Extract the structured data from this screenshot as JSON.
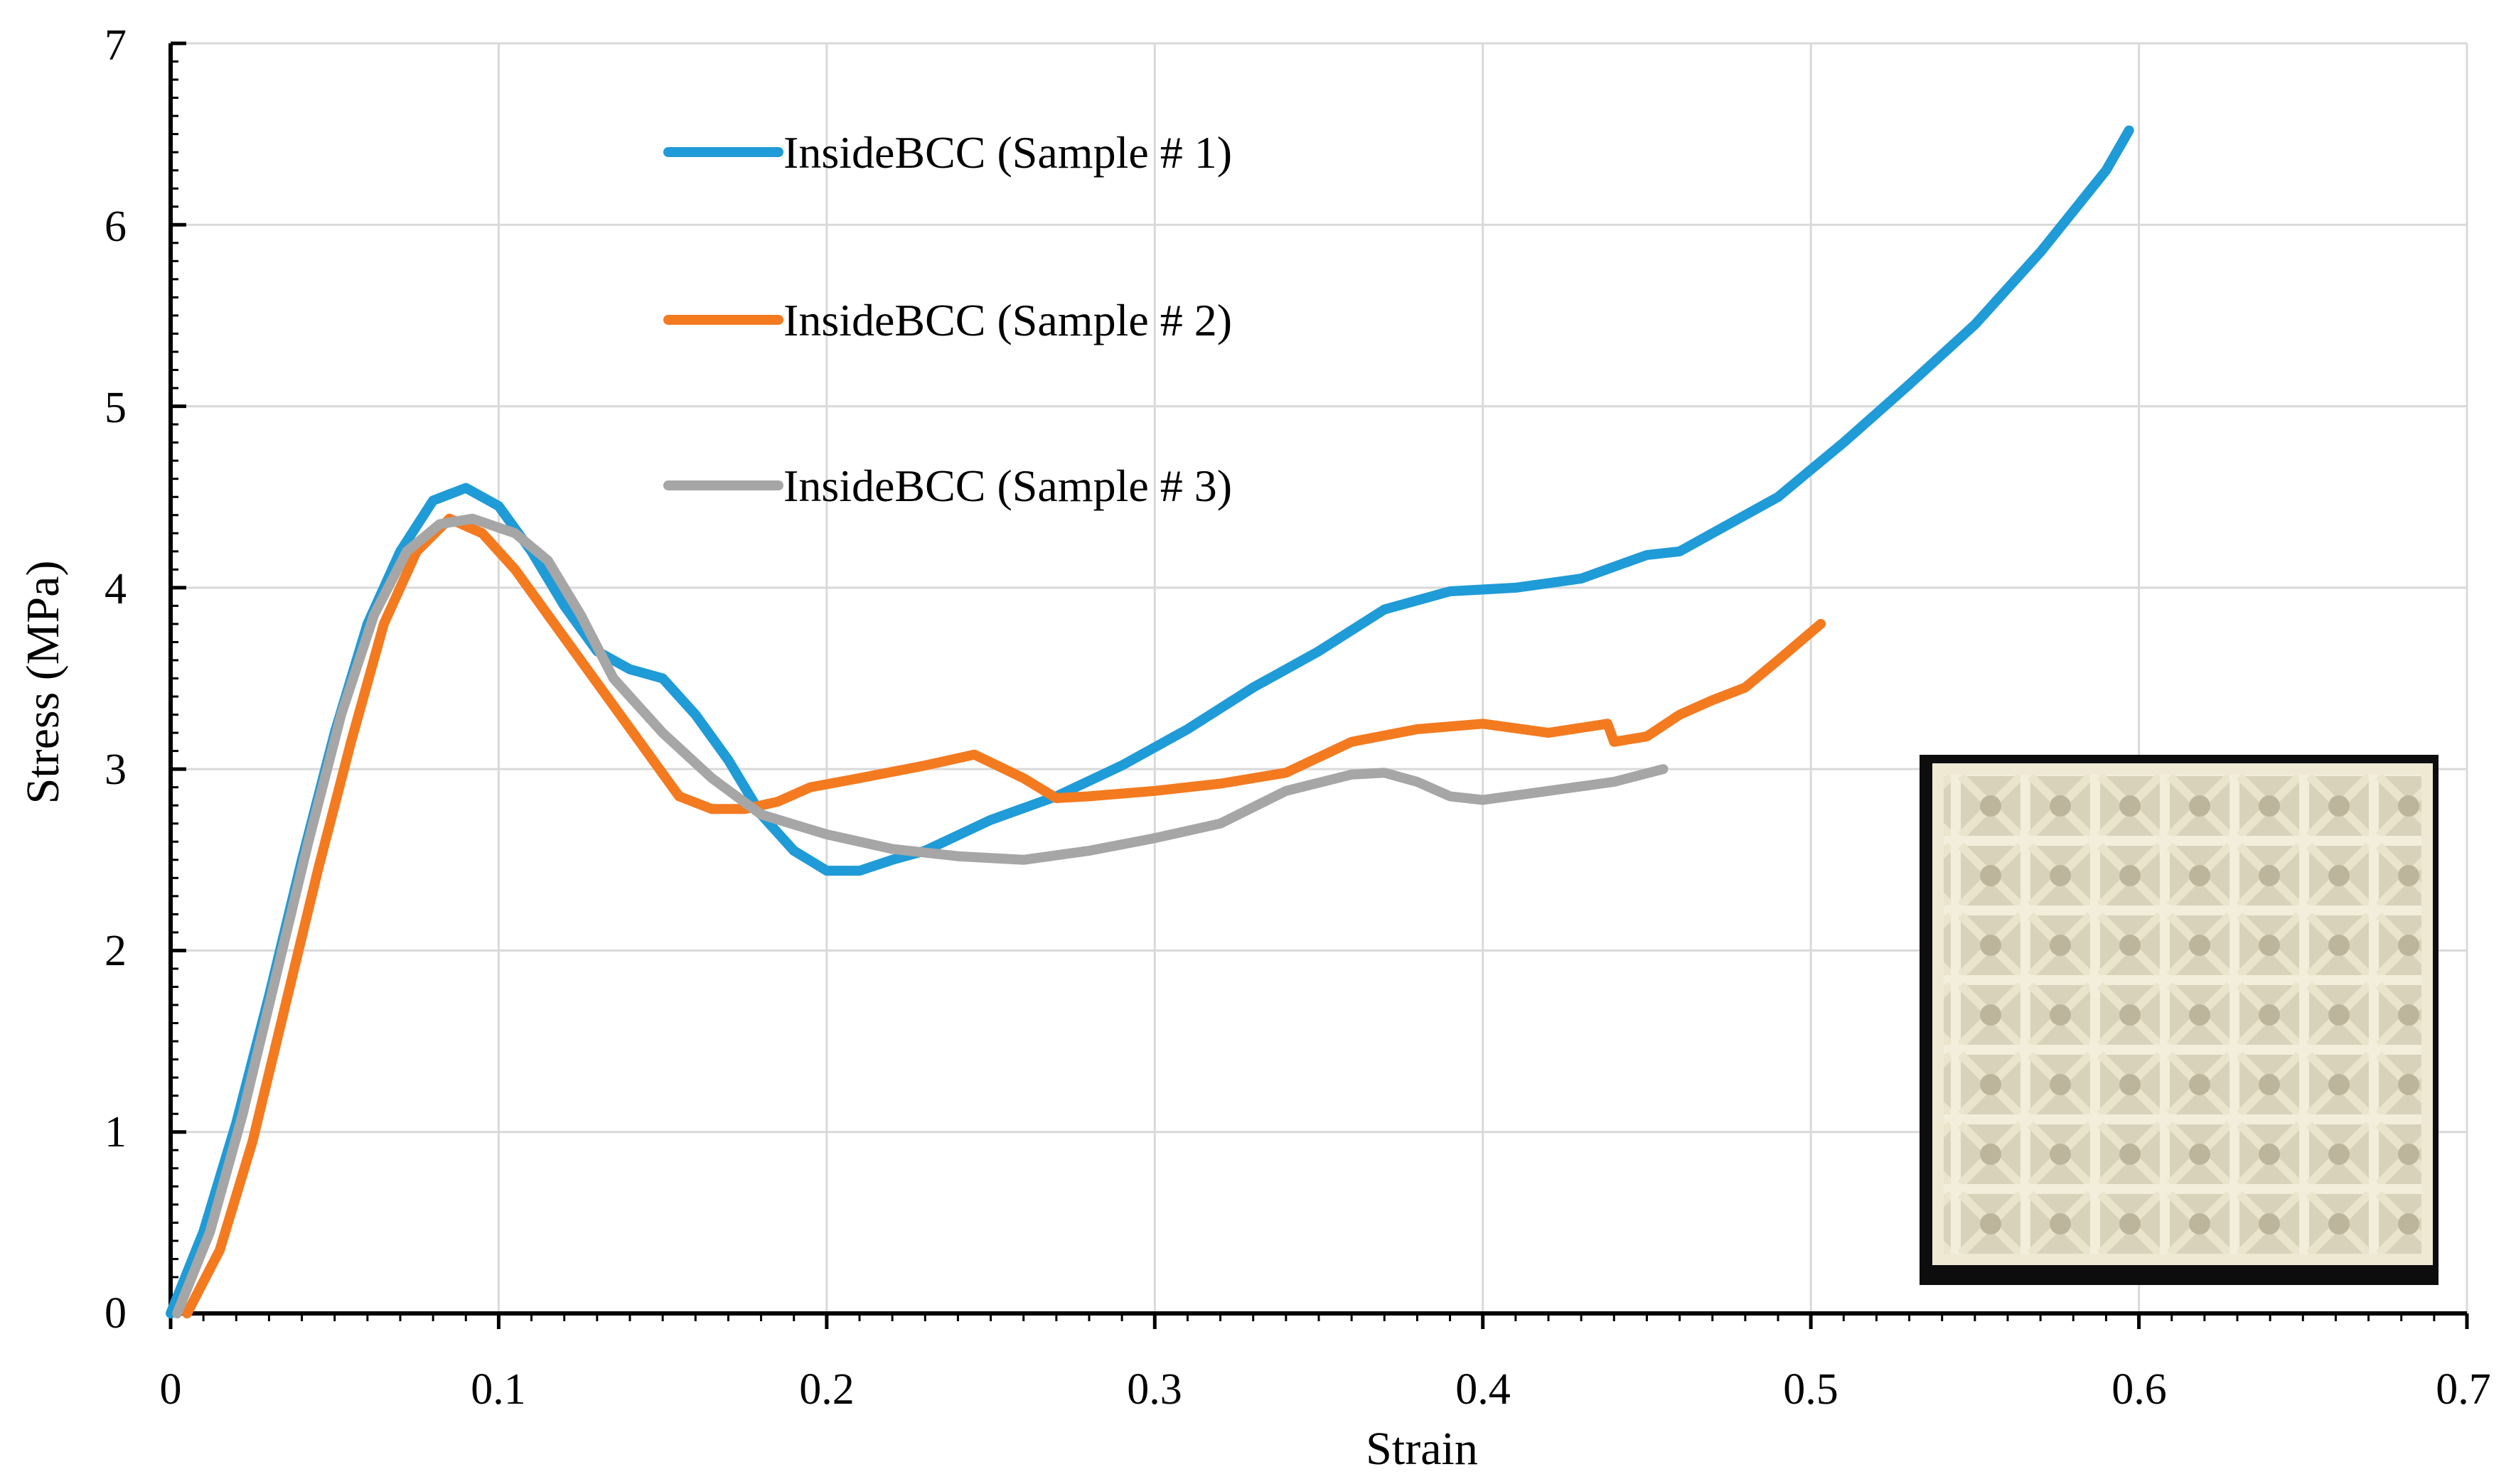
{
  "chart_data": {
    "type": "line",
    "title": "",
    "xlabel": "Strain",
    "ylabel": "Stress (MPa)",
    "xlim": [
      0,
      0.7
    ],
    "ylim": [
      0,
      7
    ],
    "x_ticks": [
      "0",
      "0.1",
      "0.2",
      "0.3",
      "0.4",
      "0.5",
      "0.6",
      "0.7"
    ],
    "y_ticks": [
      "0",
      "1",
      "2",
      "3",
      "4",
      "5",
      "6",
      "7"
    ],
    "grid": true,
    "legend_placement": "top-center",
    "inset_image": "photo of 3D-printed BCC lattice cube",
    "series": [
      {
        "name": "InsideBCC (Sample # 1)",
        "color": "#1f9bd7",
        "points": [
          [
            0,
            0
          ],
          [
            0.01,
            0.45
          ],
          [
            0.02,
            1.05
          ],
          [
            0.03,
            1.75
          ],
          [
            0.04,
            2.5
          ],
          [
            0.05,
            3.2
          ],
          [
            0.06,
            3.8
          ],
          [
            0.07,
            4.2
          ],
          [
            0.08,
            4.48
          ],
          [
            0.09,
            4.55
          ],
          [
            0.1,
            4.45
          ],
          [
            0.11,
            4.2
          ],
          [
            0.12,
            3.9
          ],
          [
            0.13,
            3.65
          ],
          [
            0.14,
            3.55
          ],
          [
            0.15,
            3.5
          ],
          [
            0.16,
            3.3
          ],
          [
            0.17,
            3.05
          ],
          [
            0.18,
            2.75
          ],
          [
            0.19,
            2.55
          ],
          [
            0.2,
            2.44
          ],
          [
            0.21,
            2.44
          ],
          [
            0.22,
            2.5
          ],
          [
            0.23,
            2.55
          ],
          [
            0.25,
            2.72
          ],
          [
            0.27,
            2.85
          ],
          [
            0.29,
            3.02
          ],
          [
            0.31,
            3.22
          ],
          [
            0.33,
            3.45
          ],
          [
            0.35,
            3.65
          ],
          [
            0.37,
            3.88
          ],
          [
            0.39,
            3.98
          ],
          [
            0.41,
            4.0
          ],
          [
            0.43,
            4.05
          ],
          [
            0.45,
            4.18
          ],
          [
            0.46,
            4.2
          ],
          [
            0.47,
            4.3
          ],
          [
            0.49,
            4.5
          ],
          [
            0.51,
            4.8
          ],
          [
            0.53,
            5.12
          ],
          [
            0.55,
            5.45
          ],
          [
            0.57,
            5.85
          ],
          [
            0.59,
            6.3
          ],
          [
            0.597,
            6.52
          ]
        ]
      },
      {
        "name": "InsideBCC (Sample # 2)",
        "color": "#f47a20",
        "points": [
          [
            0.005,
            0
          ],
          [
            0.015,
            0.35
          ],
          [
            0.025,
            0.95
          ],
          [
            0.035,
            1.7
          ],
          [
            0.045,
            2.45
          ],
          [
            0.055,
            3.15
          ],
          [
            0.065,
            3.8
          ],
          [
            0.075,
            4.2
          ],
          [
            0.085,
            4.38
          ],
          [
            0.095,
            4.3
          ],
          [
            0.105,
            4.1
          ],
          [
            0.115,
            3.85
          ],
          [
            0.125,
            3.6
          ],
          [
            0.135,
            3.35
          ],
          [
            0.145,
            3.1
          ],
          [
            0.155,
            2.85
          ],
          [
            0.165,
            2.78
          ],
          [
            0.175,
            2.78
          ],
          [
            0.185,
            2.82
          ],
          [
            0.195,
            2.9
          ],
          [
            0.21,
            2.95
          ],
          [
            0.23,
            3.02
          ],
          [
            0.245,
            3.08
          ],
          [
            0.26,
            2.95
          ],
          [
            0.27,
            2.84
          ],
          [
            0.28,
            2.85
          ],
          [
            0.3,
            2.88
          ],
          [
            0.32,
            2.92
          ],
          [
            0.34,
            2.98
          ],
          [
            0.36,
            3.15
          ],
          [
            0.38,
            3.22
          ],
          [
            0.4,
            3.25
          ],
          [
            0.42,
            3.2
          ],
          [
            0.438,
            3.25
          ],
          [
            0.44,
            3.15
          ],
          [
            0.45,
            3.18
          ],
          [
            0.46,
            3.3
          ],
          [
            0.47,
            3.38
          ],
          [
            0.48,
            3.45
          ],
          [
            0.49,
            3.6
          ],
          [
            0.503,
            3.8
          ]
        ]
      },
      {
        "name": "InsideBCC (Sample # 3)",
        "color": "#a6a6a6",
        "points": [
          [
            0.002,
            0
          ],
          [
            0.012,
            0.45
          ],
          [
            0.022,
            1.1
          ],
          [
            0.032,
            1.85
          ],
          [
            0.042,
            2.6
          ],
          [
            0.052,
            3.3
          ],
          [
            0.062,
            3.85
          ],
          [
            0.072,
            4.2
          ],
          [
            0.082,
            4.35
          ],
          [
            0.092,
            4.38
          ],
          [
            0.105,
            4.3
          ],
          [
            0.115,
            4.15
          ],
          [
            0.125,
            3.85
          ],
          [
            0.135,
            3.5
          ],
          [
            0.15,
            3.2
          ],
          [
            0.165,
            2.95
          ],
          [
            0.18,
            2.75
          ],
          [
            0.2,
            2.64
          ],
          [
            0.22,
            2.56
          ],
          [
            0.24,
            2.52
          ],
          [
            0.26,
            2.5
          ],
          [
            0.28,
            2.55
          ],
          [
            0.3,
            2.62
          ],
          [
            0.32,
            2.7
          ],
          [
            0.34,
            2.88
          ],
          [
            0.36,
            2.97
          ],
          [
            0.37,
            2.98
          ],
          [
            0.38,
            2.93
          ],
          [
            0.39,
            2.85
          ],
          [
            0.4,
            2.83
          ],
          [
            0.42,
            2.88
          ],
          [
            0.44,
            2.93
          ],
          [
            0.455,
            3.0
          ]
        ]
      }
    ]
  }
}
